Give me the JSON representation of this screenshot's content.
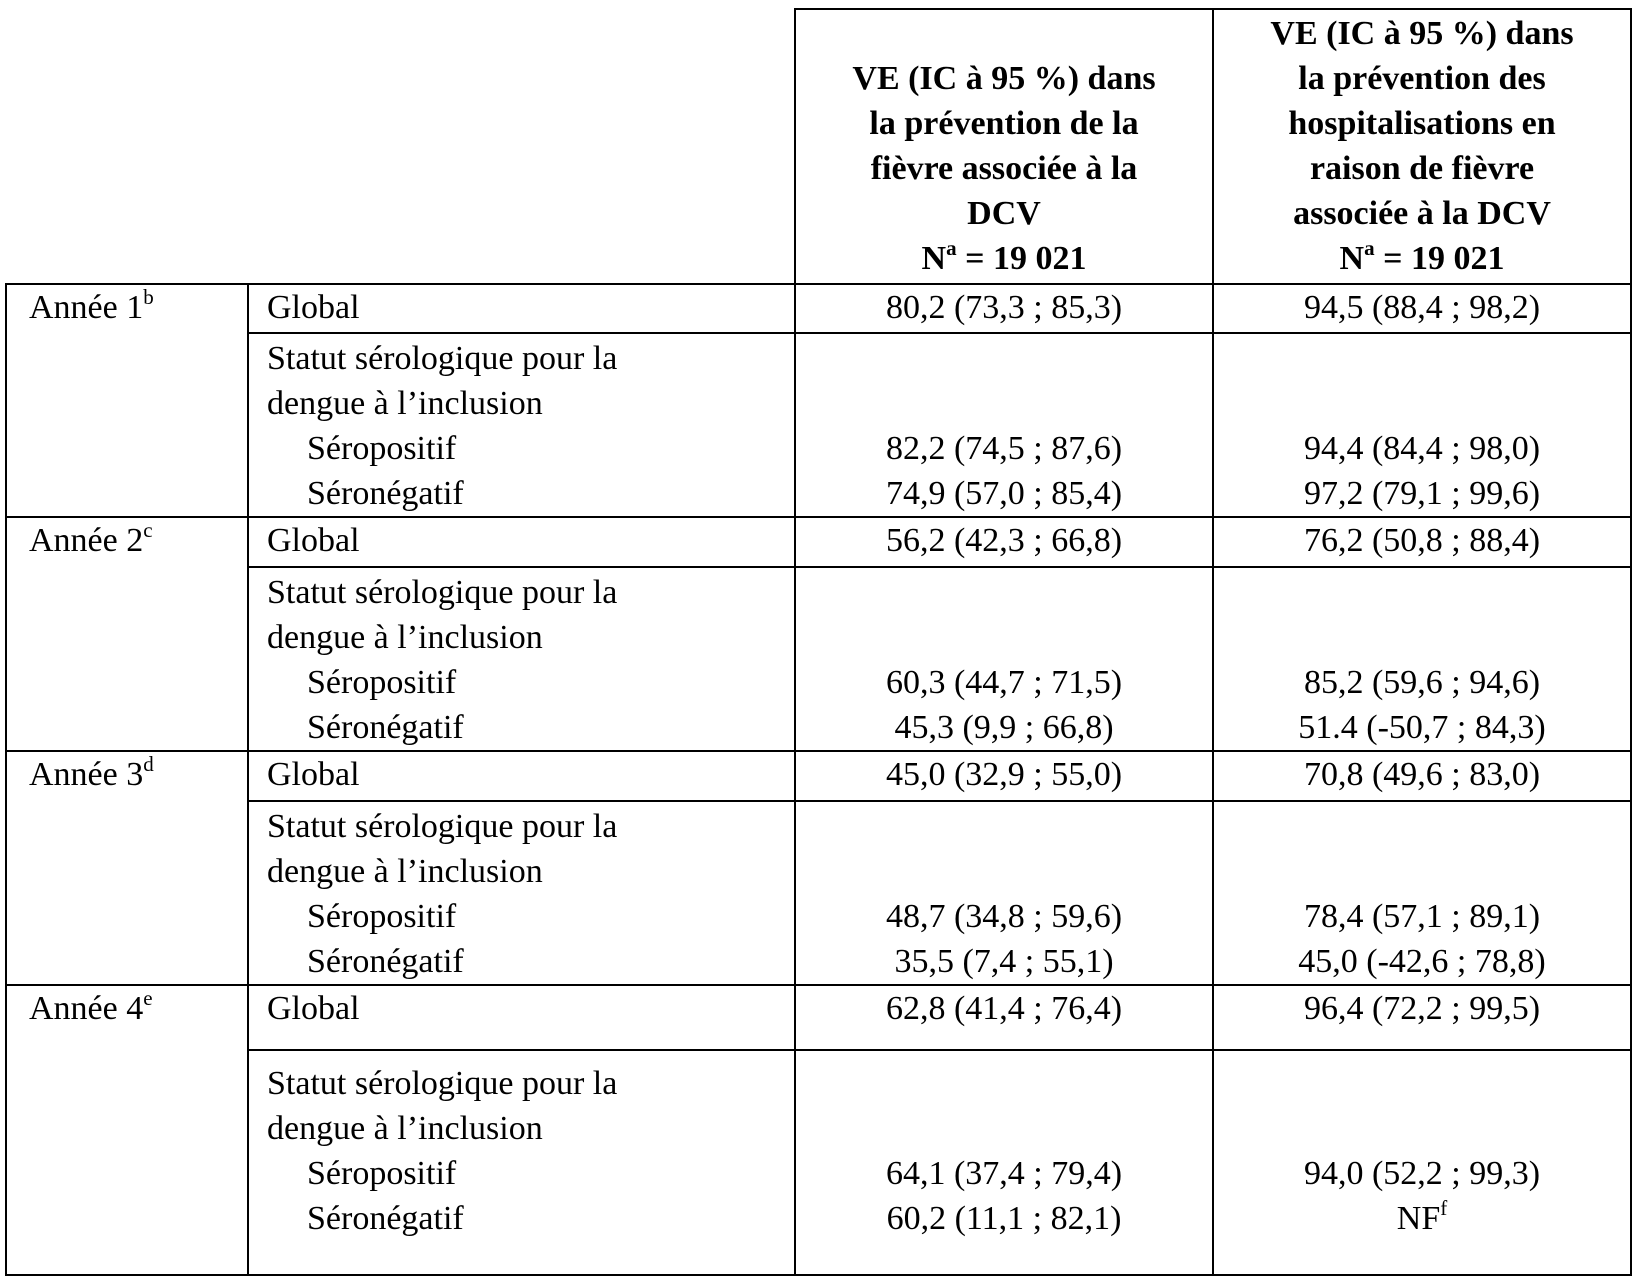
{
  "header": {
    "col3": {
      "lines": [
        "VE (IC à 95 %) dans",
        "la prévention de la",
        "fièvre associée à la",
        "DCV"
      ],
      "n_label": "N",
      "n_sup": "a",
      "n_value": " = 19 021"
    },
    "col4": {
      "lines": [
        "VE (IC à 95 %) dans",
        "la prévention des",
        "hospitalisations en",
        "raison de fièvre",
        "associée à la DCV"
      ],
      "n_label": "N",
      "n_sup": "a",
      "n_value": " = 19 021"
    }
  },
  "labels": {
    "global": "Global",
    "statut_line1": "Statut sérologique pour la",
    "statut_line2": "dengue à l’inclusion",
    "seropositif": "Séropositif",
    "seronegatif": "Séronégatif"
  },
  "years": [
    {
      "label": "Année 1",
      "sup": "b",
      "global": [
        "80,2 (73,3 ; 85,3)",
        "94,5 (88,4 ; 98,2)"
      ],
      "seropositif": [
        "82,2 (74,5 ; 87,6)",
        "94,4 (84,4 ; 98,0)"
      ],
      "seronegatif": [
        "74,9 (57,0 ; 85,4)",
        "97,2 (79,1 ; 99,6)"
      ]
    },
    {
      "label": "Année 2",
      "sup": "c",
      "global": [
        "56,2 (42,3 ; 66,8)",
        "76,2 (50,8 ; 88,4)"
      ],
      "seropositif": [
        "60,3 (44,7 ; 71,5)",
        "85,2 (59,6 ; 94,6)"
      ],
      "seronegatif": [
        "45,3 (9,9 ; 66,8)",
        "51.4 (-50,7 ; 84,3)"
      ]
    },
    {
      "label": "Année 3",
      "sup": "d",
      "global": [
        "45,0 (32,9 ; 55,0)",
        "70,8 (49,6 ; 83,0)"
      ],
      "seropositif": [
        "48,7 (34,8 ; 59,6)",
        "78,4 (57,1 ; 89,1)"
      ],
      "seronegatif": [
        "35,5 (7,4 ; 55,1)",
        "45,0 (-42,6 ; 78,8)"
      ]
    },
    {
      "label": "Année 4",
      "sup": "e",
      "global": [
        "62,8 (41,4 ; 76,4)",
        "96,4 (72,2 ; 99,5)"
      ],
      "seropositif": [
        "64,1 (37,4 ; 79,4)",
        "94,0 (52,2 ; 99,3)"
      ],
      "seronegatif": [
        "60,2 (11,1 ; 82,1)",
        "NF"
      ],
      "seronegatif_sup": [
        "",
        "f"
      ]
    }
  ]
}
